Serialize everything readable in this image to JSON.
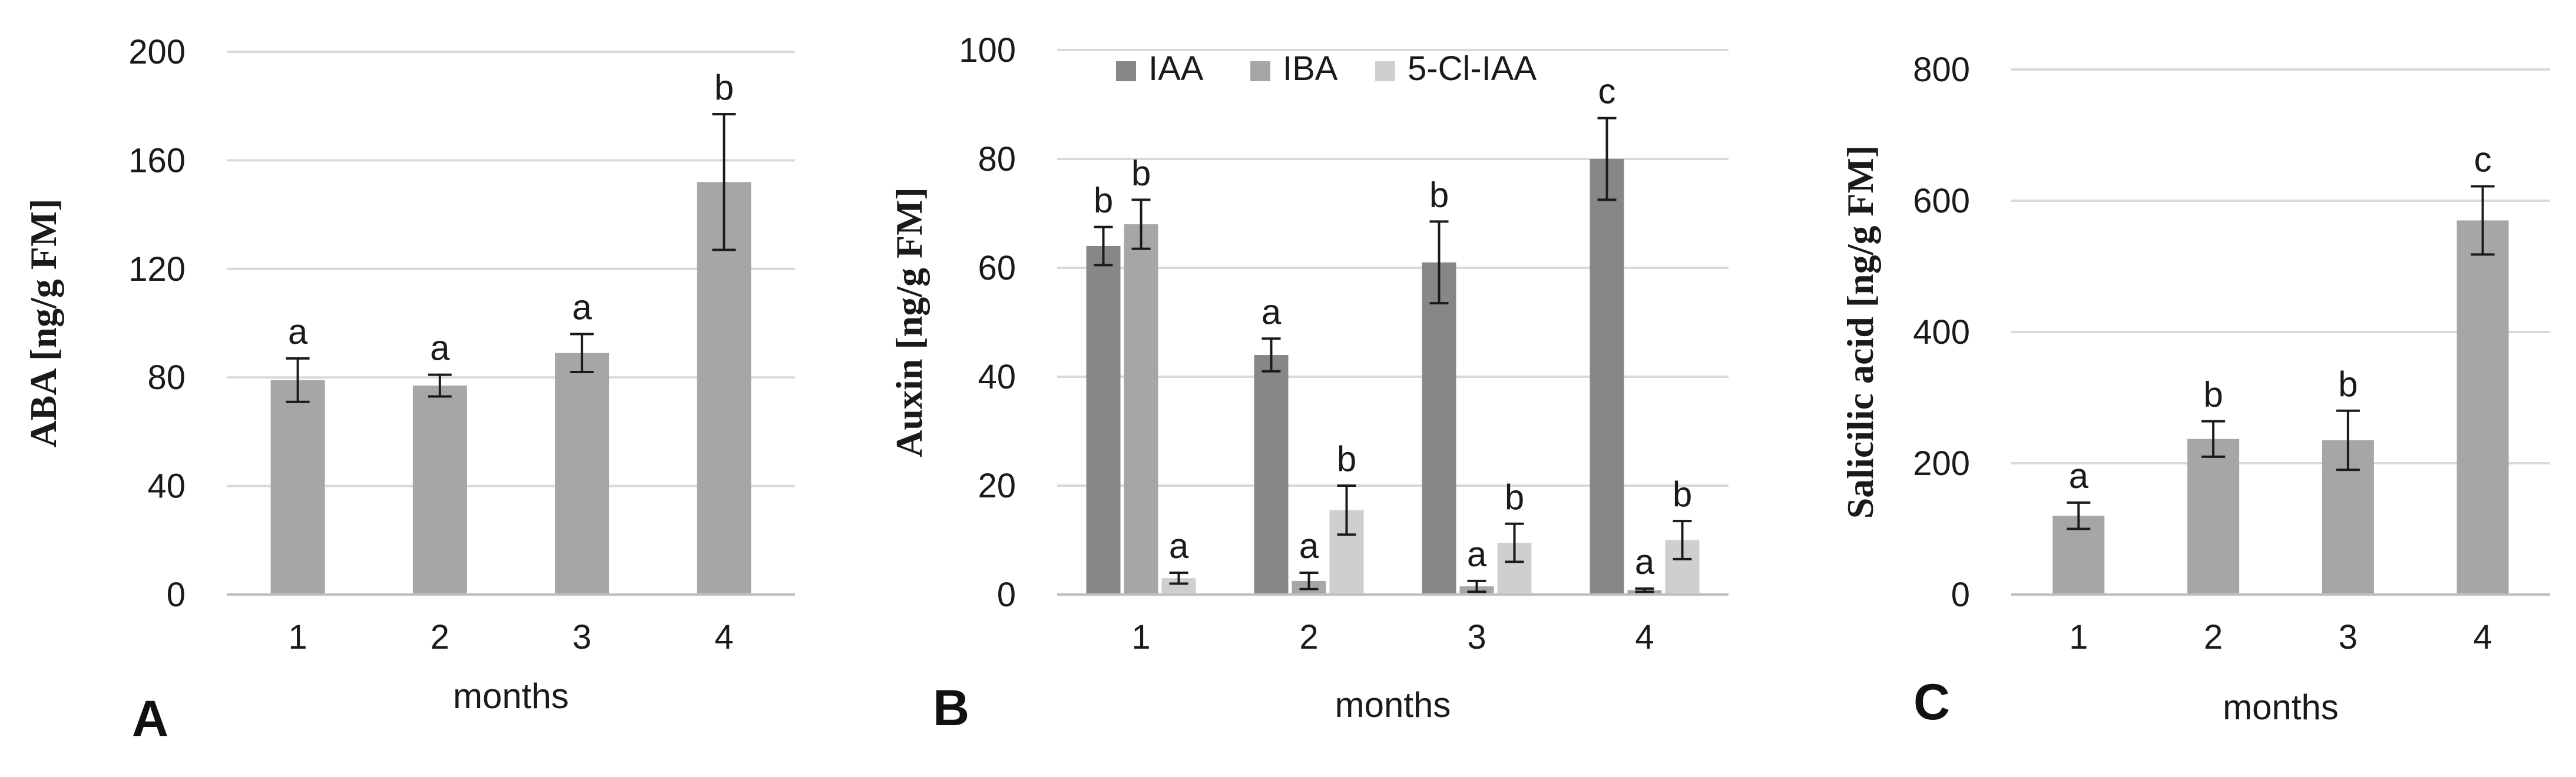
{
  "chart_data": [
    {
      "type": "bar",
      "panel_label": "A",
      "title": "",
      "xlabel": "months",
      "ylabel": "ABA [ng/g FM]",
      "ylim": [
        0,
        200
      ],
      "yticks": [
        0,
        40,
        80,
        120,
        160,
        200
      ],
      "grid": true,
      "categories": [
        "1",
        "2",
        "3",
        "4"
      ],
      "series": [
        {
          "name": "ABA",
          "color": "#a6a6a6",
          "values": [
            79,
            77,
            89,
            152
          ],
          "errors": [
            8,
            4,
            7,
            25
          ],
          "significance": [
            "a",
            "a",
            "a",
            "b"
          ]
        }
      ]
    },
    {
      "type": "bar",
      "panel_label": "B",
      "title": "",
      "xlabel": "months",
      "ylabel": "Auxin [ng/g FM]",
      "ylim": [
        0,
        100
      ],
      "yticks": [
        0,
        20,
        40,
        60,
        80,
        100
      ],
      "grid": true,
      "legend": "top",
      "categories": [
        "1",
        "2",
        "3",
        "4"
      ],
      "series": [
        {
          "name": "IAA",
          "color": "#878787",
          "values": [
            64,
            44,
            61,
            80
          ],
          "errors": [
            3.5,
            3,
            7.5,
            7.5
          ],
          "significance": [
            "b",
            "a",
            "b",
            "c"
          ]
        },
        {
          "name": "IBA",
          "color": "#a6a6a6",
          "values": [
            68,
            2.5,
            1.5,
            0.8
          ],
          "errors": [
            4.5,
            1.5,
            1,
            0.3
          ],
          "significance": [
            "b",
            "a",
            "a",
            "a"
          ]
        },
        {
          "name": "5-Cl-IAA",
          "color": "#cfcfcf",
          "values": [
            3,
            15.5,
            9.5,
            10
          ],
          "errors": [
            1,
            4.5,
            3.5,
            3.5
          ],
          "significance": [
            "a",
            "b",
            "b",
            "b"
          ]
        }
      ]
    },
    {
      "type": "bar",
      "panel_label": "C",
      "title": "",
      "xlabel": "months",
      "ylabel": "Salicilic acid [ng/g FM]",
      "ylim": [
        0,
        800
      ],
      "yticks": [
        0,
        200,
        400,
        600,
        800
      ],
      "grid": true,
      "categories": [
        "1",
        "2",
        "3",
        "4"
      ],
      "series": [
        {
          "name": "Salicylic acid",
          "color": "#a6a6a6",
          "values": [
            120,
            237,
            235,
            570
          ],
          "errors": [
            20,
            27,
            45,
            52
          ],
          "significance": [
            "a",
            "b",
            "b",
            "c"
          ]
        }
      ]
    }
  ]
}
